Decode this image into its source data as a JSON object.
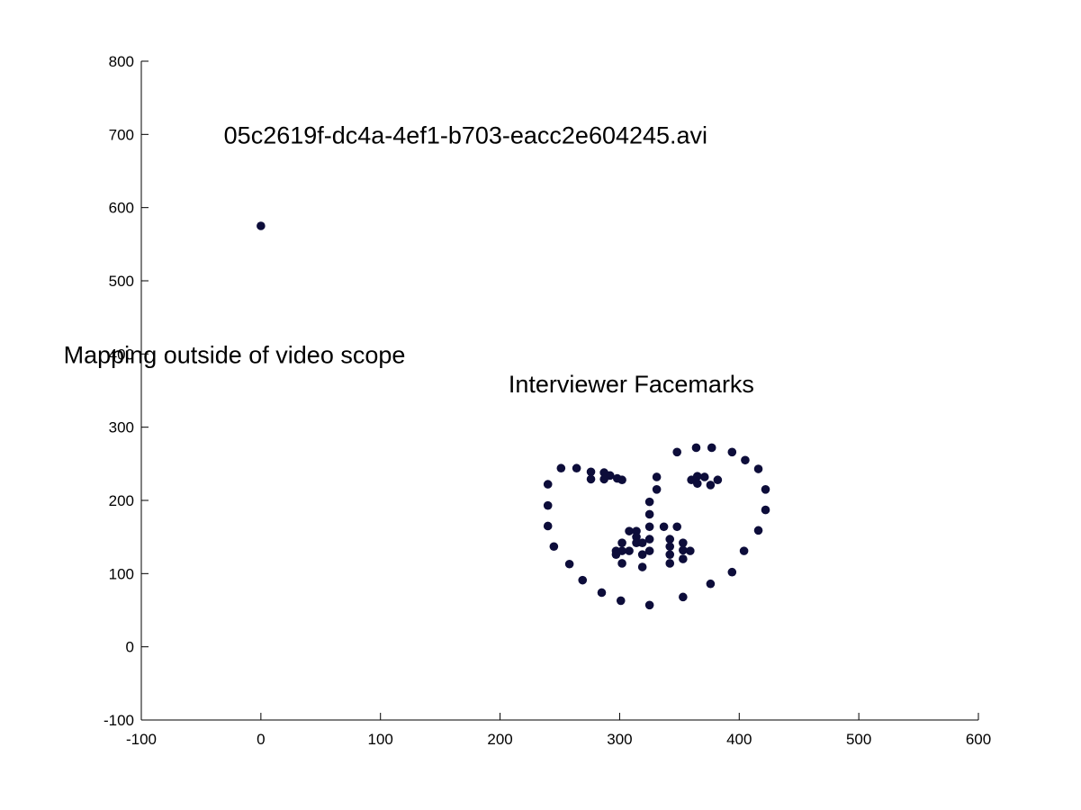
{
  "chart_data": {
    "type": "scatter",
    "title": "",
    "xlabel": "",
    "ylabel": "",
    "xlim": [
      -100,
      600
    ],
    "ylim": [
      -100,
      800
    ],
    "xticks": [
      -100,
      0,
      100,
      200,
      300,
      400,
      500,
      600
    ],
    "yticks": [
      -100,
      0,
      100,
      200,
      300,
      400,
      500,
      600,
      700,
      800
    ],
    "xtick_labels": [
      "-100",
      "0",
      "100",
      "200",
      "300",
      "400",
      "500",
      "600"
    ],
    "ytick_labels": [
      "-100",
      "0",
      "100",
      "200",
      "300",
      "400",
      "500",
      "600",
      "700",
      "800"
    ],
    "grid": false,
    "marker_color": "#0d0d3a",
    "annotations": [
      {
        "text": "05c2619f-dc4a-4ef1-b703-eacc2e604245.avi",
        "x": -31,
        "y": 700
      },
      {
        "text": "Mapping outside of video scope",
        "x": -165,
        "y": 400
      },
      {
        "text": "Interviewer Facemarks",
        "x": 207,
        "y": 360
      }
    ],
    "series": [
      {
        "points": [
          [
            0,
            575
          ],
          [
            240,
            222
          ],
          [
            240,
            193
          ],
          [
            240,
            165
          ],
          [
            245,
            137
          ],
          [
            258,
            113
          ],
          [
            269,
            91
          ],
          [
            285,
            74
          ],
          [
            301,
            63
          ],
          [
            325,
            57
          ],
          [
            353,
            68
          ],
          [
            376,
            86
          ],
          [
            394,
            102
          ],
          [
            404,
            131
          ],
          [
            416,
            159
          ],
          [
            422,
            187
          ],
          [
            422,
            215
          ],
          [
            416,
            243
          ],
          [
            251,
            244
          ],
          [
            264,
            244
          ],
          [
            276,
            239
          ],
          [
            287,
            238
          ],
          [
            292,
            234
          ],
          [
            298,
            230
          ],
          [
            276,
            229
          ],
          [
            287,
            229
          ],
          [
            302,
            228
          ],
          [
            348,
            266
          ],
          [
            364,
            272
          ],
          [
            377,
            272
          ],
          [
            394,
            266
          ],
          [
            405,
            255
          ],
          [
            360,
            228
          ],
          [
            365,
            233
          ],
          [
            371,
            232
          ],
          [
            382,
            228
          ],
          [
            365,
            223
          ],
          [
            376,
            221
          ],
          [
            325,
            198
          ],
          [
            325,
            181
          ],
          [
            325,
            164
          ],
          [
            325,
            147
          ],
          [
            331,
            215
          ],
          [
            331,
            232
          ],
          [
            308,
            158
          ],
          [
            314,
            158
          ],
          [
            314,
            150
          ],
          [
            314,
            142
          ],
          [
            319,
            142
          ],
          [
            337,
            164
          ],
          [
            348,
            164
          ],
          [
            297,
            131
          ],
          [
            302,
            142
          ],
          [
            308,
            131
          ],
          [
            319,
            126
          ],
          [
            325,
            131
          ],
          [
            297,
            126
          ],
          [
            302,
            131
          ],
          [
            302,
            114
          ],
          [
            319,
            109
          ],
          [
            342,
            147
          ],
          [
            342,
            137
          ],
          [
            342,
            126
          ],
          [
            342,
            114
          ],
          [
            353,
            142
          ],
          [
            353,
            132
          ],
          [
            353,
            120
          ],
          [
            359,
            131
          ]
        ]
      }
    ]
  }
}
